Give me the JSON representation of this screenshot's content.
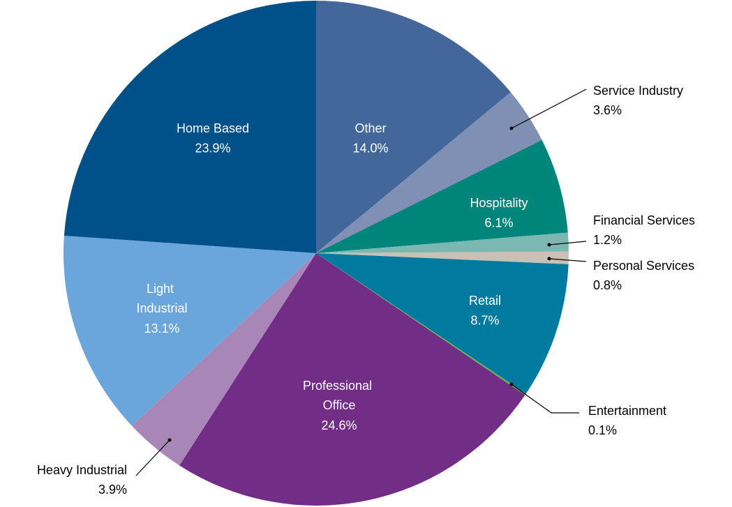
{
  "chart_data": {
    "type": "pie",
    "categories": [
      "Other",
      "Service Industry",
      "Hospitality",
      "Financial Services",
      "Personal Services",
      "Retail",
      "Entertainment",
      "Professional Office",
      "Heavy Industrial",
      "Light Industrial",
      "Home Based"
    ],
    "values": [
      14.0,
      3.6,
      6.1,
      1.2,
      0.8,
      8.7,
      0.1,
      24.6,
      3.9,
      13.1,
      23.9
    ],
    "value_labels": [
      "14.0%",
      "3.6%",
      "6.1%",
      "1.2%",
      "0.8%",
      "8.7%",
      "0.1%",
      "24.6%",
      "3.9%",
      "13.1%",
      "23.9%"
    ],
    "colors": [
      "#44679b",
      "#8090b5",
      "#00857a",
      "#7bb8b2",
      "#cbc0b6",
      "#007b9f",
      "#6cb543",
      "#722d87",
      "#a986b8",
      "#6aa6dc",
      "#00508a"
    ]
  }
}
